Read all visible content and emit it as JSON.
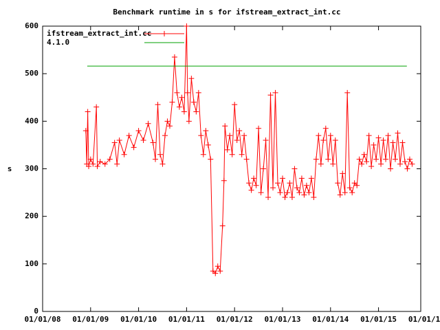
{
  "chart_data": {
    "type": "line",
    "title": "Benchmark runtime in s for ifstream_extract_int.cc",
    "y_label": "s",
    "xlim": [
      2008,
      2015.88
    ],
    "ylim": [
      0,
      600
    ],
    "yticks": [
      0,
      100,
      200,
      300,
      400,
      500,
      600
    ],
    "xticks": [
      {
        "value": 2008,
        "label": "01/01/08"
      },
      {
        "value": 2009,
        "label": "01/01/09"
      },
      {
        "value": 2010,
        "label": "01/01/10"
      },
      {
        "value": 2011,
        "label": "01/01/11"
      },
      {
        "value": 2012,
        "label": "01/01/12"
      },
      {
        "value": 2013,
        "label": "01/01/13"
      },
      {
        "value": 2014,
        "label": "01/01/14"
      },
      {
        "value": 2015,
        "label": "01/01/15"
      },
      {
        "value": 2016,
        "label": "01/01/16"
      }
    ],
    "legend": "top-left",
    "series": [
      {
        "name": "ifstream_extract_int.cc",
        "color": "#ff0000",
        "markers": true,
        "x": [
          2008.9,
          2008.92,
          2008.94,
          2008.96,
          2009.0,
          2009.05,
          2009.12,
          2009.14,
          2009.2,
          2009.3,
          2009.4,
          2009.5,
          2009.55,
          2009.6,
          2009.7,
          2009.8,
          2009.9,
          2010.0,
          2010.1,
          2010.2,
          2010.3,
          2010.35,
          2010.4,
          2010.45,
          2010.5,
          2010.55,
          2010.6,
          2010.65,
          2010.7,
          2010.75,
          2010.8,
          2010.85,
          2010.9,
          2010.95,
          2011.0,
          2011.02,
          2011.05,
          2011.1,
          2011.15,
          2011.2,
          2011.25,
          2011.3,
          2011.35,
          2011.4,
          2011.45,
          2011.5,
          2011.55,
          2011.6,
          2011.65,
          2011.7,
          2011.75,
          2011.78,
          2011.8,
          2011.85,
          2011.9,
          2011.95,
          2012.0,
          2012.05,
          2012.1,
          2012.15,
          2012.2,
          2012.25,
          2012.3,
          2012.35,
          2012.4,
          2012.45,
          2012.5,
          2012.55,
          2012.6,
          2012.65,
          2012.7,
          2012.75,
          2012.8,
          2012.85,
          2012.9,
          2012.95,
          2013.0,
          2013.05,
          2013.1,
          2013.15,
          2013.2,
          2013.25,
          2013.3,
          2013.35,
          2013.4,
          2013.45,
          2013.5,
          2013.55,
          2013.6,
          2013.65,
          2013.7,
          2013.75,
          2013.8,
          2013.85,
          2013.9,
          2013.95,
          2014.0,
          2014.05,
          2014.1,
          2014.15,
          2014.2,
          2014.25,
          2014.3,
          2014.35,
          2014.4,
          2014.45,
          2014.5,
          2014.55,
          2014.6,
          2014.65,
          2014.7,
          2014.75,
          2014.8,
          2014.85,
          2014.9,
          2014.95,
          2015.0,
          2015.05,
          2015.1,
          2015.15,
          2015.2,
          2015.25,
          2015.3,
          2015.35,
          2015.4,
          2015.45,
          2015.5,
          2015.55,
          2015.6,
          2015.65,
          2015.7
        ],
        "values": [
          380,
          310,
          420,
          305,
          320,
          310,
          430,
          305,
          315,
          310,
          320,
          355,
          310,
          360,
          330,
          370,
          345,
          380,
          360,
          395,
          355,
          320,
          435,
          330,
          310,
          370,
          400,
          390,
          440,
          535,
          460,
          430,
          450,
          420,
          600,
          460,
          400,
          490,
          440,
          420,
          460,
          370,
          330,
          380,
          350,
          320,
          85,
          80,
          95,
          85,
          180,
          275,
          390,
          340,
          370,
          330,
          435,
          360,
          380,
          330,
          370,
          320,
          270,
          255,
          280,
          265,
          385,
          250,
          300,
          360,
          240,
          455,
          260,
          460,
          270,
          250,
          280,
          240,
          250,
          270,
          240,
          300,
          260,
          250,
          280,
          245,
          265,
          250,
          280,
          240,
          320,
          370,
          310,
          360,
          385,
          320,
          370,
          310,
          360,
          270,
          245,
          290,
          250,
          460,
          260,
          250,
          270,
          265,
          320,
          310,
          330,
          315,
          370,
          305,
          350,
          320,
          365,
          310,
          360,
          320,
          370,
          300,
          355,
          320,
          375,
          310,
          355,
          315,
          300,
          320,
          310
        ]
      },
      {
        "name": "4.1.0",
        "color": "#00a000",
        "markers": false,
        "x": [
          2008.93,
          2015.59
        ],
        "values": [
          516,
          516
        ]
      }
    ]
  }
}
